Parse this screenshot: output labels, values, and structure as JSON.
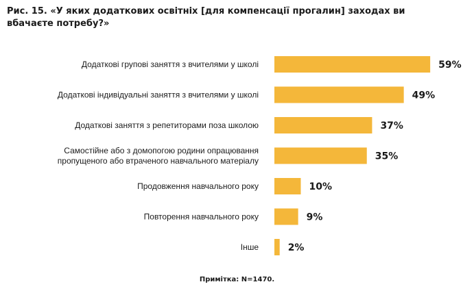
{
  "title": "Рис. 15. «У яких додаткових освітніх [для компенсації прогалин] заходах ви вбачаєте потребу?»",
  "note": "Примітка: N=1470.",
  "colors": {
    "bar": "#F4B73A",
    "text": "#1a1a1a"
  },
  "chart_data": {
    "type": "bar",
    "orientation": "horizontal",
    "title": "Рис. 15. «У яких додаткових освітніх [для компенсації прогалин] заходах ви вбачаєте потребу?»",
    "unit": "%",
    "xlim": [
      0,
      100
    ],
    "grid": false,
    "legend": "none",
    "categories": [
      [
        "Додаткові групові заняття з вчителями у школі"
      ],
      [
        "Додаткові індивідуальні заняття з вчителями у школі"
      ],
      [
        "Додаткові заняття з репетиторами поза школою"
      ],
      [
        "Самостійне або з домопогою родини опрацювання",
        "пропущеного або втраченого навчального матеріалу"
      ],
      [
        "Продовження навчального року"
      ],
      [
        "Повторення навчального року"
      ],
      [
        "Інше"
      ]
    ],
    "values": [
      59,
      49,
      37,
      35,
      10,
      9,
      2
    ],
    "value_labels": [
      "59%",
      "49%",
      "37%",
      "35%",
      "10%",
      "9%",
      "2%"
    ]
  }
}
